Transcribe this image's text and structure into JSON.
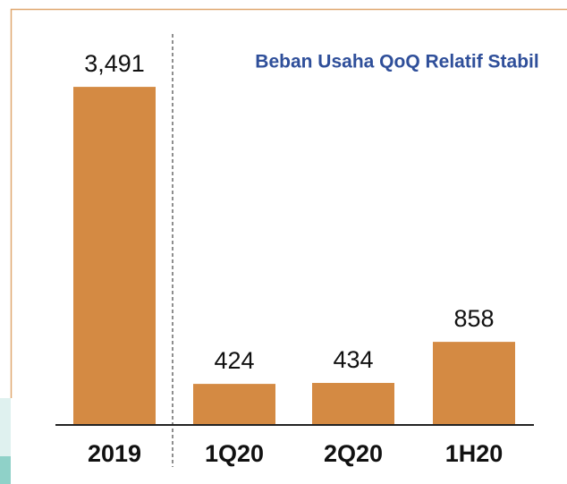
{
  "chart_data": {
    "type": "bar",
    "title": "Beban Usaha QoQ Relatif Stabil",
    "categories": [
      "2019",
      "1Q20",
      "2Q20",
      "1H20"
    ],
    "values": [
      3491,
      424,
      434,
      858
    ],
    "value_labels": [
      "3,491",
      "424",
      "434",
      "858"
    ],
    "color": "#d48a43",
    "ylim": [
      0,
      4000
    ]
  }
}
